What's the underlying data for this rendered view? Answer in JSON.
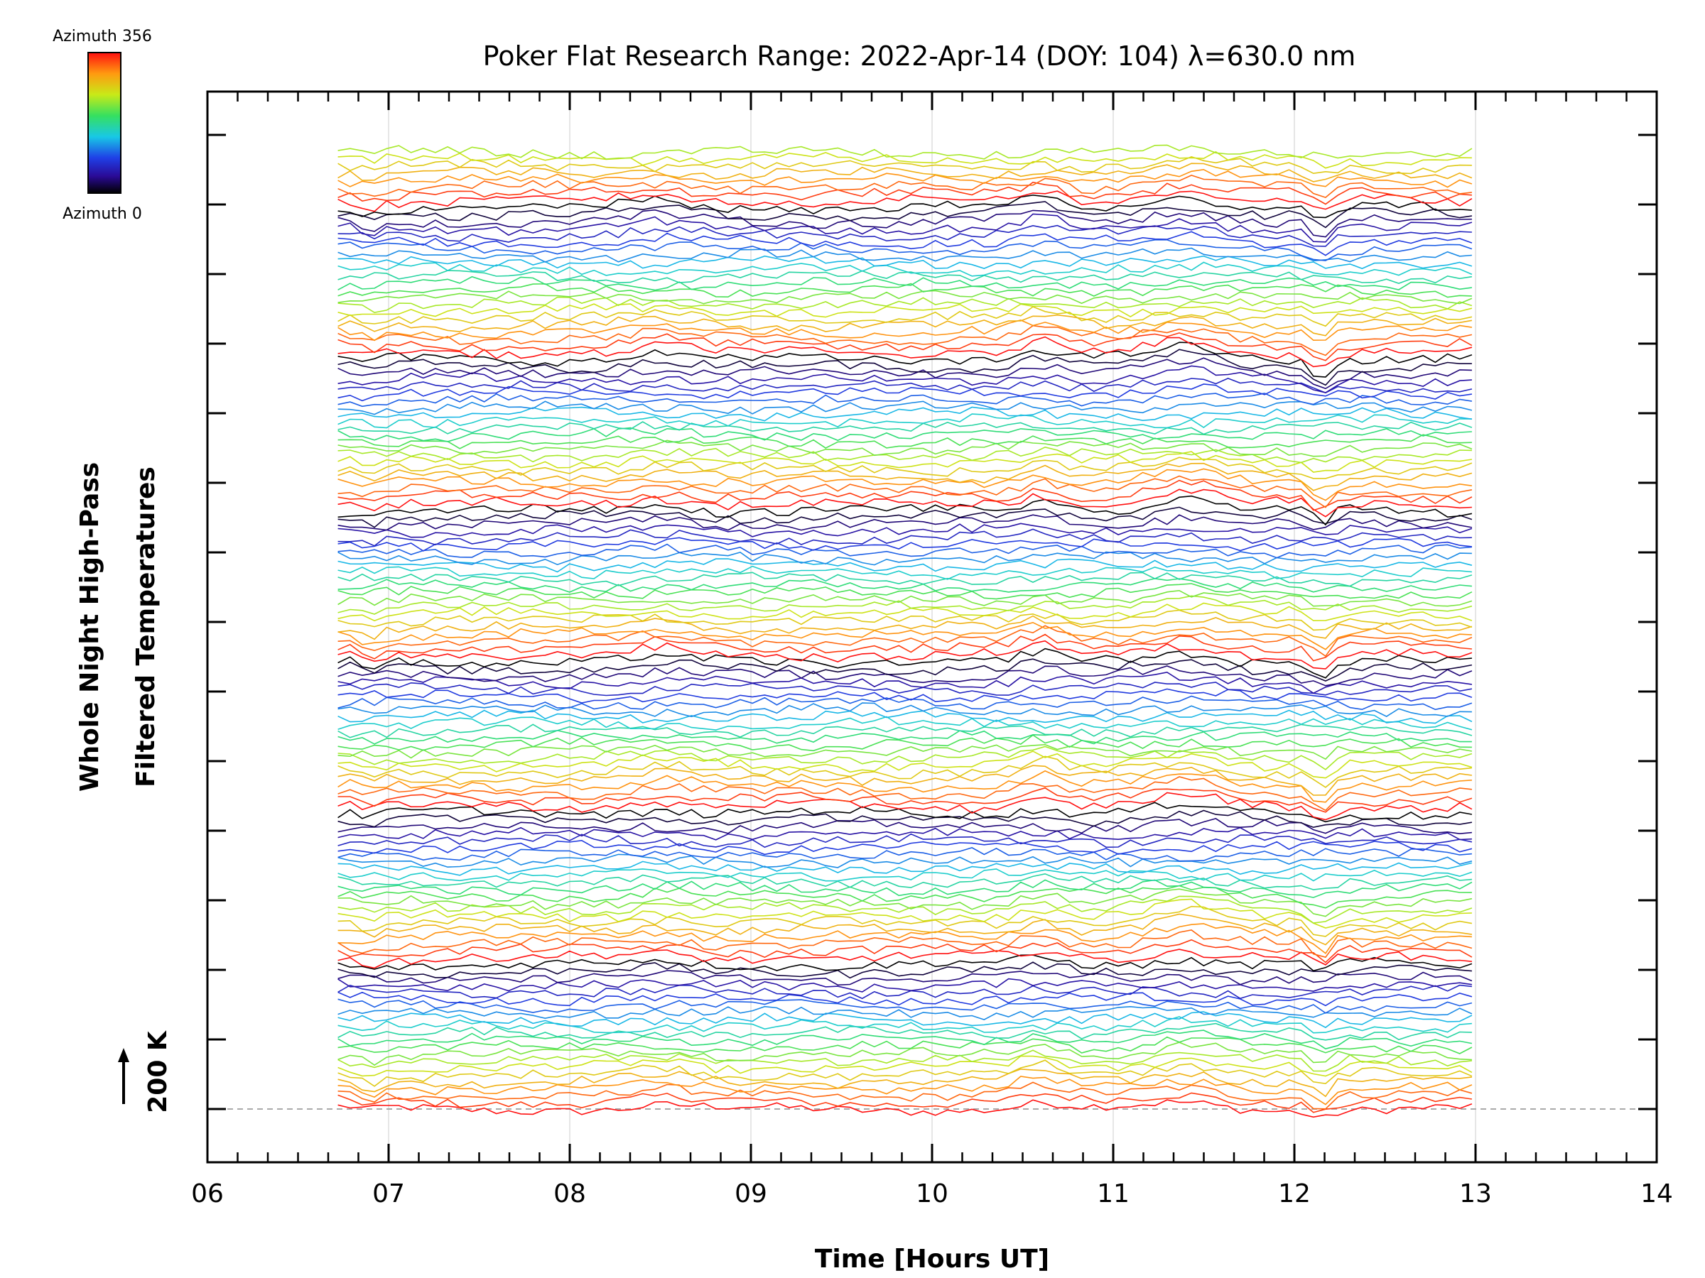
{
  "chart_data": {
    "type": "line",
    "title": "Poker Flat Research Range: 2022-Apr-14 (DOY: 104) λ=630.0 nm",
    "xlabel": "Time [Hours UT]",
    "ylabel_lines": [
      "Whole Night High-Pass",
      "Filtered Temperatures"
    ],
    "scale_marker_label": "200 K",
    "x_range": [
      6,
      14
    ],
    "x_ticks": [
      "06",
      "07",
      "08",
      "09",
      "10",
      "11",
      "12",
      "13",
      "14"
    ],
    "data_x_range": [
      6.72,
      12.98
    ],
    "series_count": 140,
    "azimuth_max": 356,
    "colorbar": {
      "top_label": "Azimuth 356",
      "bottom_label": "Azimuth 0"
    },
    "grid": true,
    "baseline": "dashed"
  }
}
